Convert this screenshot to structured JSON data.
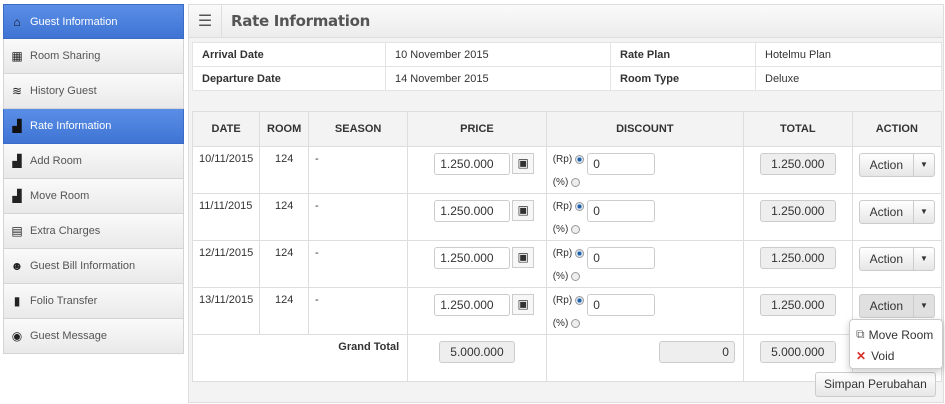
{
  "sidebar": {
    "items": [
      {
        "label": "Guest Information",
        "icon": "home-icon",
        "active": true
      },
      {
        "label": "Room Sharing",
        "icon": "grid-icon"
      },
      {
        "label": "History Guest",
        "icon": "layers-icon"
      },
      {
        "label": "Rate Information",
        "icon": "chart-icon",
        "active": true
      },
      {
        "label": "Add Room",
        "icon": "chart-icon"
      },
      {
        "label": "Move Room",
        "icon": "chart-icon"
      },
      {
        "label": "Extra Charges",
        "icon": "document-icon"
      },
      {
        "label": "Guest Bill Information",
        "icon": "users-icon"
      },
      {
        "label": "Folio Transfer",
        "icon": "book-icon"
      },
      {
        "label": "Guest Message",
        "icon": "gamepad-icon"
      }
    ]
  },
  "header": {
    "title": "Rate Information"
  },
  "info": {
    "arrival_label": "Arrival Date",
    "arrival": "10 November 2015",
    "departure_label": "Departure Date",
    "departure": "14 November 2015",
    "plan_label": "Rate Plan",
    "plan": "Hotelmu Plan",
    "type_label": "Room Type",
    "type": "Deluxe"
  },
  "table": {
    "headers": [
      "DATE",
      "ROOM",
      "SEASON",
      "PRICE",
      "DISCOUNT",
      "TOTAL",
      "ACTION"
    ],
    "rows": [
      {
        "date": "10/11/2015",
        "room": "124",
        "season": "-",
        "price": "1.250.000",
        "discount": "0",
        "total": "1.250.000"
      },
      {
        "date": "11/11/2015",
        "room": "124",
        "season": "-",
        "price": "1.250.000",
        "discount": "0",
        "total": "1.250.000"
      },
      {
        "date": "12/11/2015",
        "room": "124",
        "season": "-",
        "price": "1.250.000",
        "discount": "0",
        "total": "1.250.000"
      },
      {
        "date": "13/11/2015",
        "room": "124",
        "season": "-",
        "price": "1.250.000",
        "discount": "0",
        "total": "1.250.000"
      }
    ],
    "rp_label": "(Rp)",
    "pct_label": "(%)",
    "action_label": "Action",
    "grand_total_label": "Grand Total",
    "grand_price": "5.000.000",
    "grand_discount": "0",
    "grand_total": "5.000.000"
  },
  "dropdown": {
    "items": [
      {
        "label": "Move Room",
        "icon": "move-icon"
      },
      {
        "label": "Void",
        "icon": "x-icon",
        "color": "#d9302c"
      }
    ]
  },
  "save_label": "Simpan Perubahan"
}
